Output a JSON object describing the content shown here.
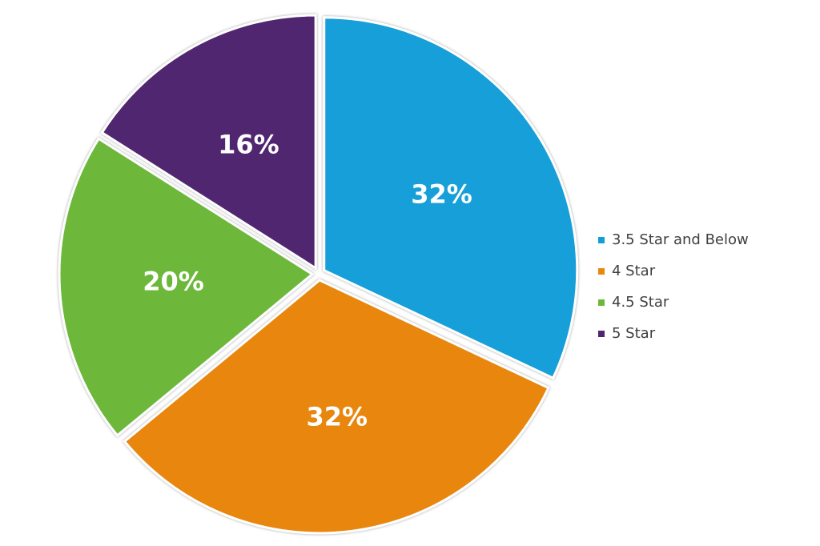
{
  "chart_data": {
    "type": "pie",
    "categories": [
      "3.5 Star and Below",
      "4 Star",
      "4.5 Star",
      "5 Star"
    ],
    "values": [
      32,
      32,
      20,
      16
    ],
    "value_labels": [
      "32%",
      "32%",
      "20%",
      "16%"
    ],
    "colors": [
      "#129fd8",
      "#e8860f",
      "#6db83a",
      "#51266f"
    ],
    "legend": "right"
  }
}
